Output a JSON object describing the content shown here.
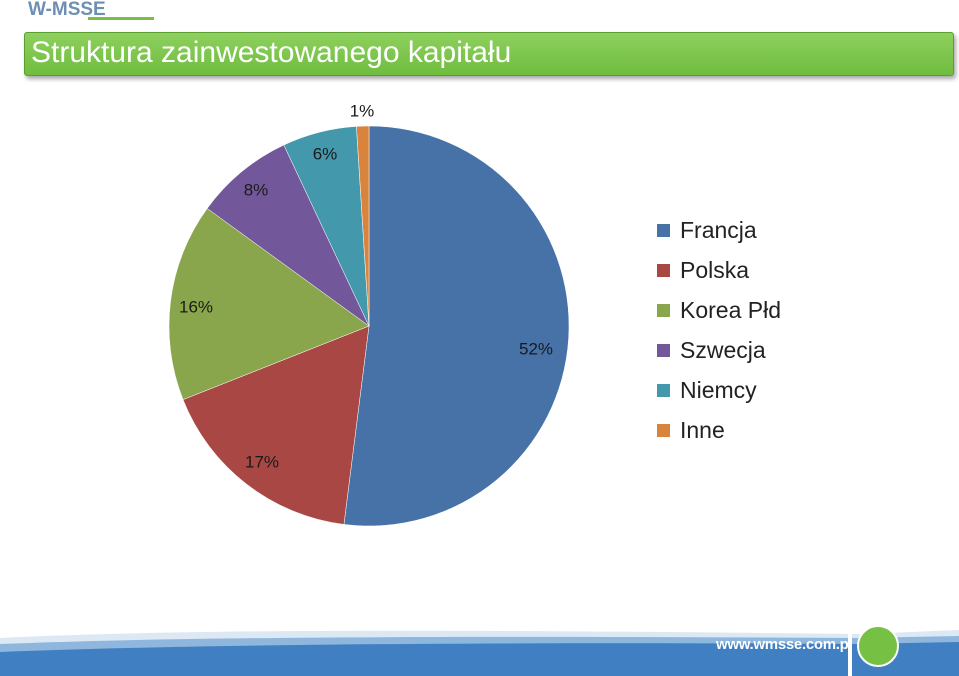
{
  "brand": {
    "logo_text": "W-MSSE",
    "website": "www.wmsse.com.pl",
    "accent_color": "#76c043"
  },
  "header": {
    "title": "Struktura zainwestowanego kapitału"
  },
  "chart_data": {
    "type": "pie",
    "title": "",
    "categories": [
      "Francja",
      "Polska",
      "Korea Płd",
      "Szwecja",
      "Niemcy",
      "Inne"
    ],
    "values": [
      52,
      17,
      16,
      8,
      6,
      1
    ],
    "labels": [
      "52%",
      "17%",
      "16%",
      "8%",
      "6%",
      "1%"
    ],
    "colors": [
      "#4672a8",
      "#a84744",
      "#8aa64c",
      "#72589a",
      "#4398ac",
      "#d9843d"
    ],
    "legend_position": "right"
  },
  "legend": {
    "items": [
      {
        "label": "Francja",
        "color": "#4672a8"
      },
      {
        "label": "Polska",
        "color": "#a84744"
      },
      {
        "label": "Korea Płd",
        "color": "#8aa64c"
      },
      {
        "label": "Szwecja",
        "color": "#72589a"
      },
      {
        "label": "Niemcy",
        "color": "#4398ac"
      },
      {
        "label": "Inne",
        "color": "#d9843d"
      }
    ]
  }
}
